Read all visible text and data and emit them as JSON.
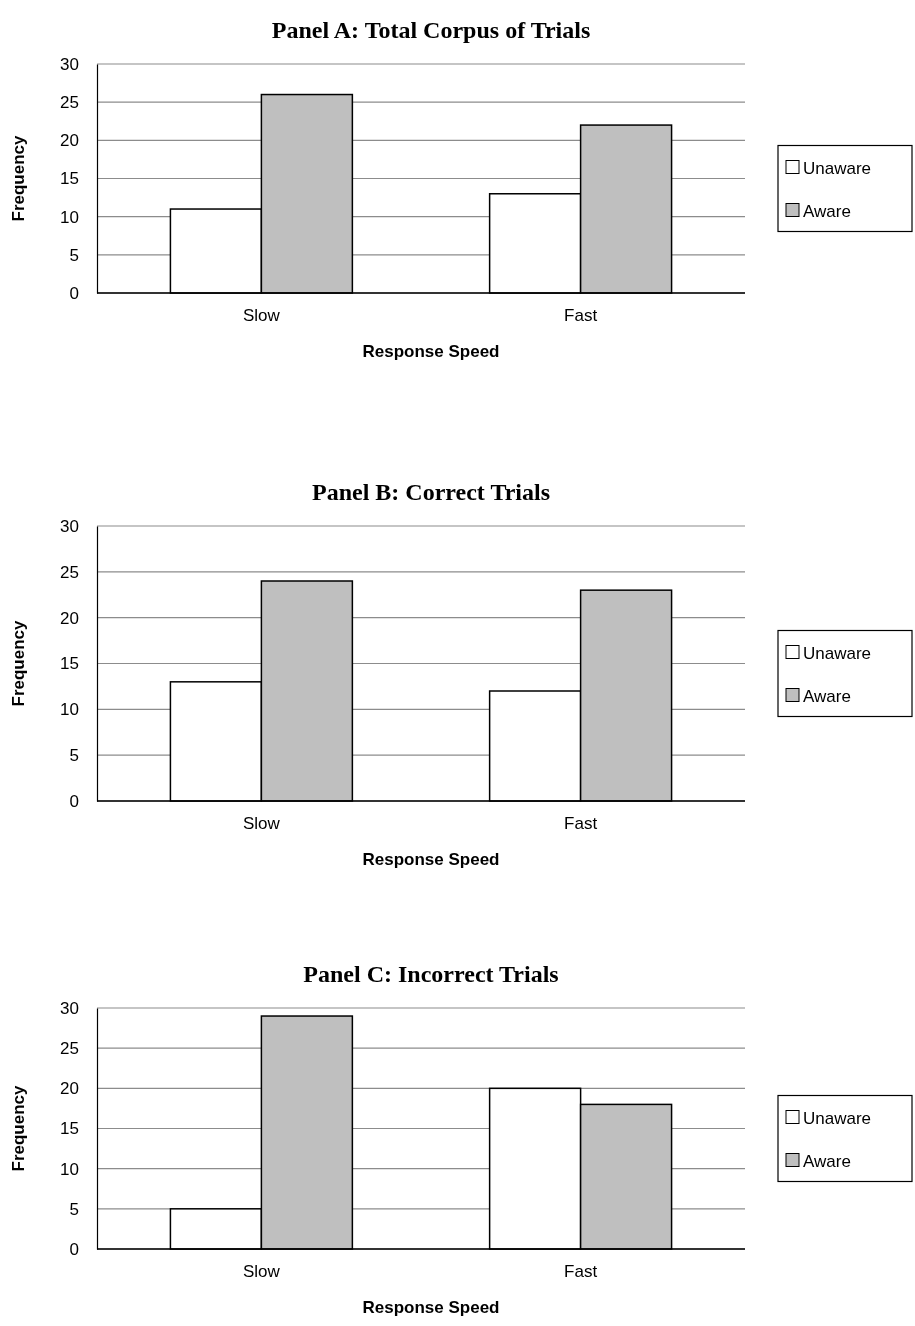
{
  "chart_data": [
    {
      "type": "bar",
      "title": "Panel A: Total Corpus of Trials",
      "xlabel": "Response Speed",
      "ylabel": "Frequency",
      "categories": [
        "Slow",
        "Fast"
      ],
      "series": [
        {
          "name": "Unaware",
          "color": "#ffffff",
          "values": [
            11,
            13
          ]
        },
        {
          "name": "Aware",
          "color": "#bfbfbf",
          "values": [
            26,
            22
          ]
        }
      ],
      "ylim": [
        0,
        30
      ],
      "yticks": [
        0,
        5,
        10,
        15,
        20,
        25,
        30
      ],
      "grid": "y",
      "legend": "right"
    },
    {
      "type": "bar",
      "title": "Panel B: Correct Trials",
      "xlabel": "Response Speed",
      "ylabel": "Frequency",
      "categories": [
        "Slow",
        "Fast"
      ],
      "series": [
        {
          "name": "Unaware",
          "color": "#ffffff",
          "values": [
            13,
            12
          ]
        },
        {
          "name": "Aware",
          "color": "#bfbfbf",
          "values": [
            24,
            23
          ]
        }
      ],
      "ylim": [
        0,
        30
      ],
      "yticks": [
        0,
        5,
        10,
        15,
        20,
        25,
        30
      ],
      "grid": "y",
      "legend": "right"
    },
    {
      "type": "bar",
      "title": "Panel C: Incorrect Trials",
      "xlabel": "Response Speed",
      "ylabel": "Frequency",
      "categories": [
        "Slow",
        "Fast"
      ],
      "series": [
        {
          "name": "Unaware",
          "color": "#ffffff",
          "values": [
            5,
            20
          ]
        },
        {
          "name": "Aware",
          "color": "#bfbfbf",
          "values": [
            29,
            18
          ]
        }
      ],
      "ylim": [
        0,
        30
      ],
      "yticks": [
        0,
        5,
        10,
        15,
        20,
        25,
        30
      ],
      "grid": "y",
      "legend": "right"
    }
  ]
}
